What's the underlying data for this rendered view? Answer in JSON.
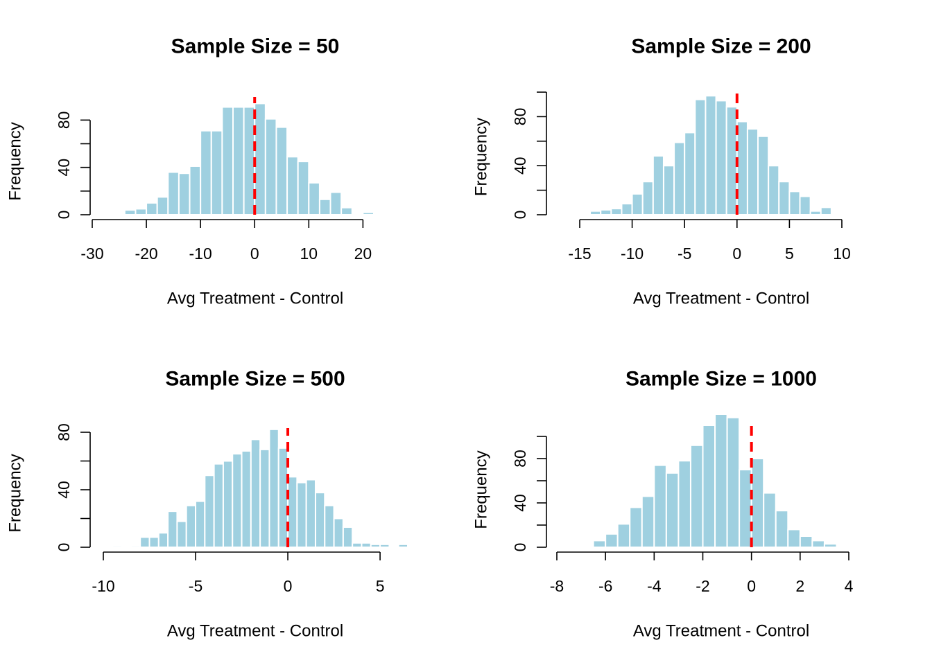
{
  "colors": {
    "bar": "#9fd0e0",
    "bar_edge": "#ffffff",
    "reference_line": "#ff0000",
    "axis": "#000000"
  },
  "chart_data": [
    {
      "type": "bar",
      "title": "Sample Size = 50",
      "xlabel": "Avg Treatment - Control",
      "ylabel": "Frequency",
      "xlim": [
        -30,
        22
      ],
      "ylim": [
        0,
        96
      ],
      "x_ticks": [
        -30,
        -20,
        -10,
        0,
        10,
        20
      ],
      "y_ticks": [
        0,
        20,
        40,
        60,
        80
      ],
      "y_tick_labels": [
        "0",
        "",
        "40",
        "",
        "80"
      ],
      "bin_edges": [
        -28,
        -26,
        -24,
        -22,
        -20,
        -18,
        -16,
        -14,
        -12,
        -10,
        -8,
        -6,
        -4,
        -2,
        0,
        2,
        4,
        6,
        8,
        10,
        12,
        14,
        16,
        18,
        20,
        22
      ],
      "values": [
        1,
        0,
        4,
        5,
        10,
        15,
        36,
        35,
        41,
        71,
        71,
        91,
        91,
        91,
        94,
        81,
        74,
        49,
        45,
        27,
        13,
        19,
        6,
        0,
        2
      ],
      "reference_x": 0
    },
    {
      "type": "bar",
      "title": "Sample Size = 200",
      "xlabel": "Avg Treatment - Control",
      "ylabel": "Frequency",
      "xlim": [
        -15,
        10
      ],
      "ylim": [
        0,
        100
      ],
      "x_ticks": [
        -15,
        -10,
        -5,
        0,
        5,
        10
      ],
      "y_ticks": [
        0,
        20,
        40,
        60,
        80,
        100
      ],
      "y_tick_labels": [
        "0",
        "",
        "40",
        "",
        "80",
        ""
      ],
      "bin_edges": [
        -14,
        -13,
        -12,
        -11,
        -10,
        -9,
        -8,
        -7,
        -6,
        -5,
        -4,
        -3,
        -2,
        -1,
        0,
        1,
        2,
        3,
        4,
        5,
        6,
        7,
        8,
        9
      ],
      "values": [
        3,
        4,
        5,
        9,
        17,
        27,
        48,
        40,
        59,
        67,
        94,
        97,
        93,
        88,
        76,
        70,
        64,
        40,
        27,
        19,
        15,
        3,
        6
      ],
      "reference_x": 0
    },
    {
      "type": "bar",
      "title": "Sample Size = 500",
      "xlabel": "Avg Treatment - Control",
      "ylabel": "Frequency",
      "xlim": [
        -10,
        6.5
      ],
      "ylim": [
        0,
        80
      ],
      "x_ticks": [
        -10,
        -5,
        0,
        5
      ],
      "y_ticks": [
        0,
        20,
        40,
        60,
        80
      ],
      "y_tick_labels": [
        "0",
        "",
        "40",
        "",
        "80"
      ],
      "bin_edges": [
        -9.5,
        -9,
        -8.5,
        -8,
        -7.5,
        -7,
        -6.5,
        -6,
        -5.5,
        -5,
        -4.5,
        -4,
        -3.5,
        -3,
        -2.5,
        -2,
        -1.5,
        -1,
        -0.5,
        0,
        0.5,
        1,
        1.5,
        2,
        2.5,
        3,
        3.5,
        4,
        4.5,
        5,
        5.5,
        6,
        6.5
      ],
      "values": [
        1,
        0,
        1,
        7,
        7,
        10,
        25,
        18,
        29,
        32,
        50,
        58,
        60,
        65,
        67,
        75,
        68,
        82,
        69,
        49,
        45,
        47,
        38,
        29,
        20,
        14,
        3,
        3,
        2,
        2,
        0,
        2
      ],
      "reference_x": 0
    },
    {
      "type": "bar",
      "title": "Sample Size = 1000",
      "xlabel": "Avg Treatment - Control",
      "ylabel": "Frequency",
      "xlim": [
        -8,
        4
      ],
      "ylim": [
        0,
        110
      ],
      "x_ticks": [
        -8,
        -6,
        -4,
        -2,
        0,
        2,
        4
      ],
      "y_ticks": [
        0,
        20,
        40,
        60,
        80,
        100
      ],
      "y_tick_labels": [
        "0",
        "",
        "40",
        "",
        "80",
        ""
      ],
      "bin_edges": [
        -7,
        -6.5,
        -6,
        -5.5,
        -5,
        -4.5,
        -4,
        -3.5,
        -3,
        -2.5,
        -2,
        -1.5,
        -1,
        -0.5,
        0,
        0.5,
        1,
        1.5,
        2,
        2.5,
        3,
        3.5
      ],
      "values": [
        1,
        6,
        12,
        21,
        36,
        46,
        74,
        67,
        78,
        92,
        110,
        120,
        117,
        70,
        80,
        49,
        33,
        16,
        10,
        6,
        3
      ],
      "reference_x": 0
    }
  ]
}
